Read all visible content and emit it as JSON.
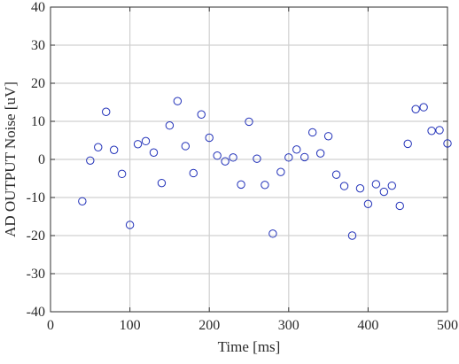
{
  "chart_data": {
    "type": "scatter",
    "title": "",
    "xlabel": "Time [ms]",
    "ylabel": "AD OUTPUT Noise [uV]",
    "xlim": [
      0,
      500
    ],
    "ylim": [
      -40,
      40
    ],
    "xticks": [
      0,
      100,
      200,
      300,
      400,
      500
    ],
    "yticks": [
      -40,
      -30,
      -20,
      -10,
      0,
      10,
      20,
      30,
      40
    ],
    "grid": true,
    "marker": "open-circle",
    "marker_color": "#1f2fb8",
    "series": [
      {
        "x": [
          40,
          50,
          60,
          70,
          80,
          90,
          100,
          110,
          120,
          130,
          140,
          150,
          160,
          170,
          180,
          190,
          200,
          210,
          220,
          230,
          240,
          250,
          260,
          270,
          280,
          290,
          300,
          310,
          320,
          330,
          340,
          350,
          360,
          370,
          380,
          390,
          400,
          410,
          420,
          430,
          440,
          450,
          460,
          470,
          480,
          490,
          500
        ],
        "y": [
          -11,
          -0.3,
          3.2,
          12.5,
          2.5,
          -3.8,
          -17.2,
          4.0,
          4.8,
          1.8,
          -6.2,
          8.9,
          15.3,
          3.5,
          -3.6,
          11.8,
          5.7,
          1.0,
          -0.5,
          0.5,
          -6.6,
          9.9,
          0.2,
          -6.7,
          -19.5,
          -3.3,
          0.5,
          2.6,
          0.6,
          7.1,
          1.6,
          6.1,
          -4.0,
          -7.0,
          -20.0,
          -7.6,
          -11.7,
          -6.5,
          -8.5,
          -6.9,
          -12.2,
          4.1,
          13.2,
          13.7,
          7.5,
          7.7,
          4.2
        ]
      }
    ]
  }
}
